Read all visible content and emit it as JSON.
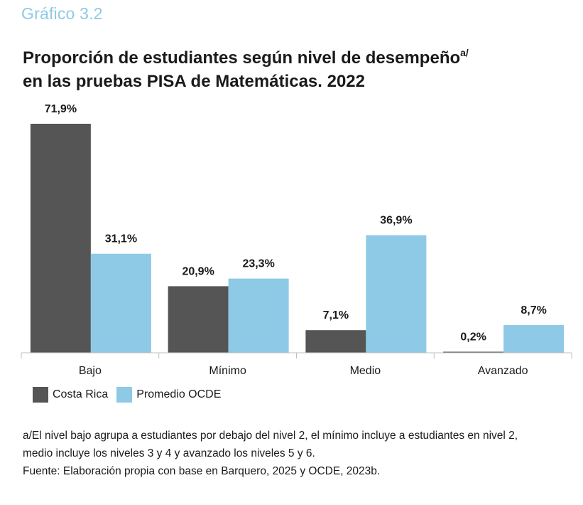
{
  "header": {
    "kicker": "Gráfico 3.2",
    "title_line1": "Proporción de estudiantes según nivel de desempeño",
    "title_note_mark": "a/",
    "title_line2": "en las pruebas PISA de Matemáticas. 2022"
  },
  "colors": {
    "costa_rica": "#555555",
    "ocde": "#8ecae6"
  },
  "chart_data": {
    "type": "bar",
    "categories": [
      "Bajo",
      "Mínimo",
      "Medio",
      "Avanzado"
    ],
    "series": [
      {
        "name": "Costa Rica",
        "values": [
          71.9,
          20.9,
          7.1,
          0.2
        ],
        "labels": [
          "71,9%",
          "20,9%",
          "7,1%",
          "0,2%"
        ]
      },
      {
        "name": "Promedio OCDE",
        "values": [
          31.1,
          23.3,
          36.9,
          8.7
        ],
        "labels": [
          "31,1%",
          "23,3%",
          "36,9%",
          "8,7%"
        ]
      }
    ],
    "ylim": [
      0,
      80
    ],
    "grid": false,
    "legend": "bottom-left"
  },
  "legend": [
    {
      "label": "Costa Rica"
    },
    {
      "label": "Promedio OCDE"
    }
  ],
  "notes": {
    "line1": "a/El nivel bajo agrupa a estudiantes por debajo del nivel 2, el mínimo incluye a estudiantes en nivel 2,",
    "line2": "medio incluye los niveles 3 y 4 y avanzado los niveles 5 y 6.",
    "source": "Fuente: Elaboración propia con base en Barquero, 2025 y OCDE, 2023b."
  }
}
